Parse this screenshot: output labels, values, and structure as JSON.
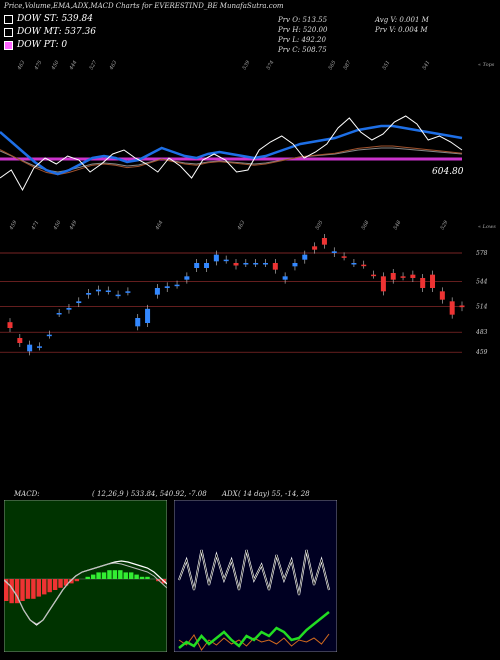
{
  "header": {
    "title": "Price,Volume,EMA,ADX,MACD Charts for EVERESTIND_BE MunafaSutra.com"
  },
  "legend": [
    {
      "label": "DOW ST: 539.84",
      "color": "#ffffff"
    },
    {
      "label": "DOW MT: 537.36",
      "color": "#ffffff"
    },
    {
      "label": "DOW PT: 0",
      "color": "#ff66ff"
    }
  ],
  "stats": {
    "prev_open": "Prv  O: 513.55",
    "prev_high": "Prv  H: 520.00",
    "prev_low": "Prv  L: 492.20",
    "prev_close": "Prv  C: 508.75",
    "avg_vol": "Avg V: 0.001 M",
    "prev_vol": "Prv  V: 0.004  M"
  },
  "top_panel": {
    "corner_label": "« Tops",
    "tops": [
      "463",
      "475",
      "450",
      "444",
      "527",
      "463",
      "539",
      "574",
      "565",
      "587",
      "551",
      "541"
    ],
    "last_price": "604.80"
  },
  "candle_panel": {
    "corner_label": "« Lows",
    "lows": [
      "459",
      "471",
      "450",
      "449",
      "464",
      "463",
      "505",
      "568",
      "548",
      "529"
    ]
  },
  "macd": {
    "label": "MACD:",
    "params": "( 12,26,9 ) 533.84,  540.92,  -7.08"
  },
  "adx": {
    "label": "ADX",
    "params": "( 14  day) 55,  -14,  28"
  },
  "chart_data": [
    {
      "type": "candlestick",
      "title": "Price,Volume,EMA,ADX,MACD Charts for EVERESTIND_BE",
      "ylim": [
        440,
        620
      ],
      "y_ticks": [
        578,
        544,
        514,
        483,
        459
      ],
      "candles": [
        {
          "o": 495,
          "c": 488,
          "color": "red"
        },
        {
          "o": 476,
          "c": 470,
          "color": "red"
        },
        {
          "o": 468,
          "c": 460,
          "color": "blue"
        },
        {
          "o": 466,
          "c": 466,
          "color": "blue"
        },
        {
          "o": 480,
          "c": 480,
          "color": "blue"
        },
        {
          "o": 506,
          "c": 506,
          "color": "blue"
        },
        {
          "o": 510,
          "c": 512,
          "color": "blue"
        },
        {
          "o": 518,
          "c": 520,
          "color": "blue"
        },
        {
          "o": 528,
          "c": 530,
          "color": "blue"
        },
        {
          "o": 532,
          "c": 534,
          "color": "blue"
        },
        {
          "o": 533,
          "c": 533,
          "color": "blue"
        },
        {
          "o": 528,
          "c": 528,
          "color": "blue"
        },
        {
          "o": 532,
          "c": 532,
          "color": "blue"
        },
        {
          "o": 490,
          "c": 500,
          "color": "blue"
        },
        {
          "o": 494,
          "c": 511,
          "color": "blue"
        },
        {
          "o": 528,
          "c": 536,
          "color": "blue"
        },
        {
          "o": 536,
          "c": 538,
          "color": "blue"
        },
        {
          "o": 540,
          "c": 540,
          "color": "blue"
        },
        {
          "o": 546,
          "c": 550,
          "color": "blue"
        },
        {
          "o": 560,
          "c": 566,
          "color": "blue"
        },
        {
          "o": 560,
          "c": 566,
          "color": "blue"
        },
        {
          "o": 568,
          "c": 576,
          "color": "blue"
        },
        {
          "o": 570,
          "c": 570,
          "color": "blue"
        },
        {
          "o": 566,
          "c": 563,
          "color": "red"
        },
        {
          "o": 566,
          "c": 566,
          "color": "blue"
        },
        {
          "o": 566,
          "c": 566,
          "color": "blue"
        },
        {
          "o": 566,
          "c": 566,
          "color": "blue"
        },
        {
          "o": 566,
          "c": 558,
          "color": "red"
        },
        {
          "o": 546,
          "c": 550,
          "color": "blue"
        },
        {
          "o": 562,
          "c": 566,
          "color": "blue"
        },
        {
          "o": 570,
          "c": 576,
          "color": "blue"
        },
        {
          "o": 582,
          "c": 586,
          "color": "red"
        },
        {
          "o": 588,
          "c": 596,
          "color": "red"
        },
        {
          "o": 578,
          "c": 580,
          "color": "blue"
        },
        {
          "o": 574,
          "c": 574,
          "color": "red"
        },
        {
          "o": 566,
          "c": 566,
          "color": "blue"
        },
        {
          "o": 564,
          "c": 564,
          "color": "red"
        },
        {
          "o": 552,
          "c": 552,
          "color": "red"
        },
        {
          "o": 550,
          "c": 532,
          "color": "red"
        },
        {
          "o": 554,
          "c": 546,
          "color": "red"
        },
        {
          "o": 550,
          "c": 550,
          "color": "red"
        },
        {
          "o": 552,
          "c": 548,
          "color": "red"
        },
        {
          "o": 548,
          "c": 536,
          "color": "red"
        },
        {
          "o": 552,
          "c": 536,
          "color": "red"
        },
        {
          "o": 532,
          "c": 522,
          "color": "red"
        },
        {
          "o": 520,
          "c": 504,
          "color": "red"
        },
        {
          "o": 515,
          "c": 513,
          "color": "red"
        }
      ]
    },
    {
      "type": "line",
      "name": "EMA/Price overlay",
      "series": [
        {
          "values": [
            80,
            72,
            92,
            70,
            60,
            66,
            58,
            62,
            74,
            66,
            56,
            52,
            60,
            66,
            74,
            60,
            68,
            80,
            62,
            56,
            62,
            74,
            72,
            52,
            44,
            38,
            46,
            60,
            54,
            46,
            30,
            20,
            34,
            42,
            36,
            24,
            18,
            26,
            42,
            38,
            44,
            52
          ]
        },
        {
          "values": [
            36,
            46,
            56,
            66,
            74,
            78,
            74,
            68,
            62,
            60,
            62,
            66,
            64,
            58,
            52,
            56,
            60,
            62,
            58,
            56,
            58,
            60,
            62,
            60,
            56,
            52,
            48,
            46,
            44,
            42,
            38,
            34,
            32,
            30,
            30,
            32,
            34,
            36,
            38,
            40,
            42
          ]
        }
      ]
    },
    {
      "type": "bar",
      "name": "MACD",
      "values": [
        -10,
        -11,
        -11,
        -10,
        -9,
        -9,
        -8,
        -7,
        -6,
        -5,
        -4,
        -3,
        -2,
        -1,
        0,
        1,
        2,
        3,
        3,
        4,
        4,
        4,
        3,
        3,
        2,
        1,
        1,
        0,
        -1,
        -2
      ]
    },
    {
      "type": "line",
      "name": "ADX",
      "series": [
        {
          "values": [
            60,
            40,
            70,
            30,
            65,
            35,
            60,
            40,
            70,
            30,
            60,
            45,
            70,
            35,
            60,
            40,
            75,
            30,
            65,
            40,
            70
          ]
        },
        {
          "values": [
            20,
            25,
            15,
            30,
            20,
            25,
            18,
            24,
            20,
            26,
            18,
            22,
            20,
            24,
            18,
            26,
            20,
            22,
            18,
            24,
            14
          ]
        }
      ]
    }
  ]
}
